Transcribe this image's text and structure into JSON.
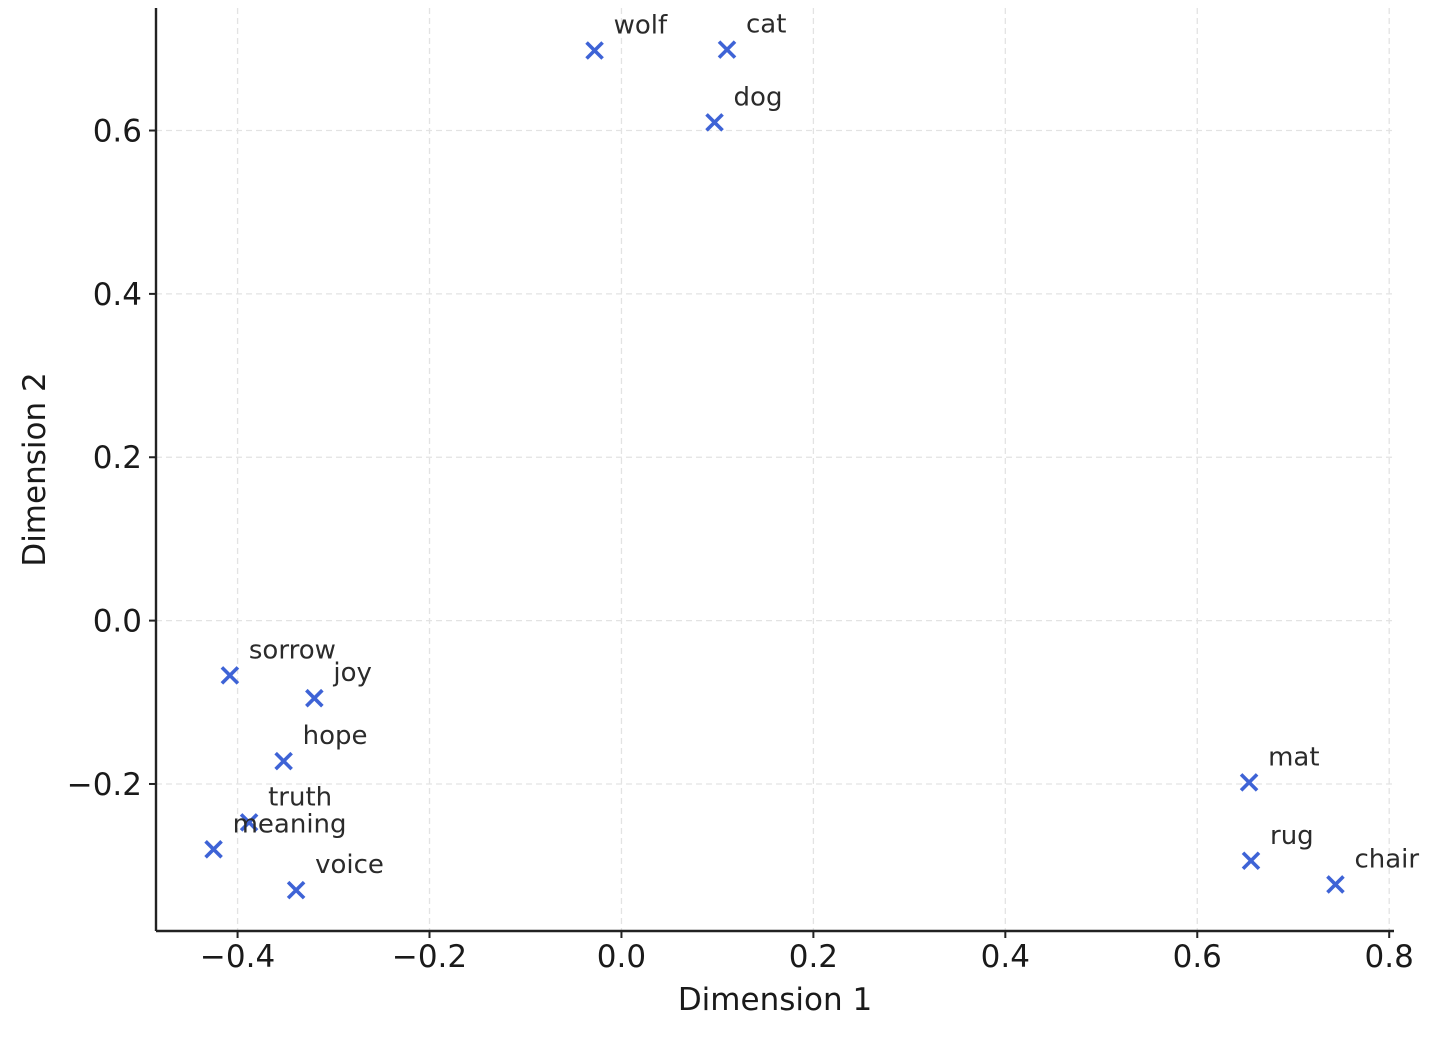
{
  "chart_data": {
    "type": "scatter",
    "title": "",
    "xlabel": "Dimension 1",
    "ylabel": "Dimension 2",
    "xlim": [
      -0.485,
      0.805
    ],
    "ylim": [
      -0.38,
      0.75
    ],
    "x_ticks": [
      -0.4,
      -0.2,
      0.0,
      0.2,
      0.4,
      0.6,
      0.8
    ],
    "x_tick_labels": [
      "−0.4",
      "−0.2",
      "0.0",
      "0.2",
      "0.4",
      "0.6",
      "0.8"
    ],
    "y_ticks": [
      -0.2,
      0.0,
      0.2,
      0.4,
      0.6
    ],
    "y_tick_labels": [
      "−0.2",
      "0.0",
      "0.2",
      "0.4",
      "0.6"
    ],
    "grid": true,
    "marker": "x",
    "color": "#3e63d6",
    "points": [
      {
        "label": "wolf",
        "x": -0.028,
        "y": 0.698
      },
      {
        "label": "cat",
        "x": 0.11,
        "y": 0.699
      },
      {
        "label": "dog",
        "x": 0.097,
        "y": 0.61
      },
      {
        "label": "sorrow",
        "x": -0.408,
        "y": -0.067
      },
      {
        "label": "joy",
        "x": -0.32,
        "y": -0.095
      },
      {
        "label": "hope",
        "x": -0.352,
        "y": -0.172
      },
      {
        "label": "truth",
        "x": -0.388,
        "y": -0.247
      },
      {
        "label": "meaning",
        "x": -0.425,
        "y": -0.28
      },
      {
        "label": "voice",
        "x": -0.339,
        "y": -0.33
      },
      {
        "label": "mat",
        "x": 0.654,
        "y": -0.198
      },
      {
        "label": "rug",
        "x": 0.656,
        "y": -0.294
      },
      {
        "label": "chair",
        "x": 0.744,
        "y": -0.323
      }
    ]
  }
}
